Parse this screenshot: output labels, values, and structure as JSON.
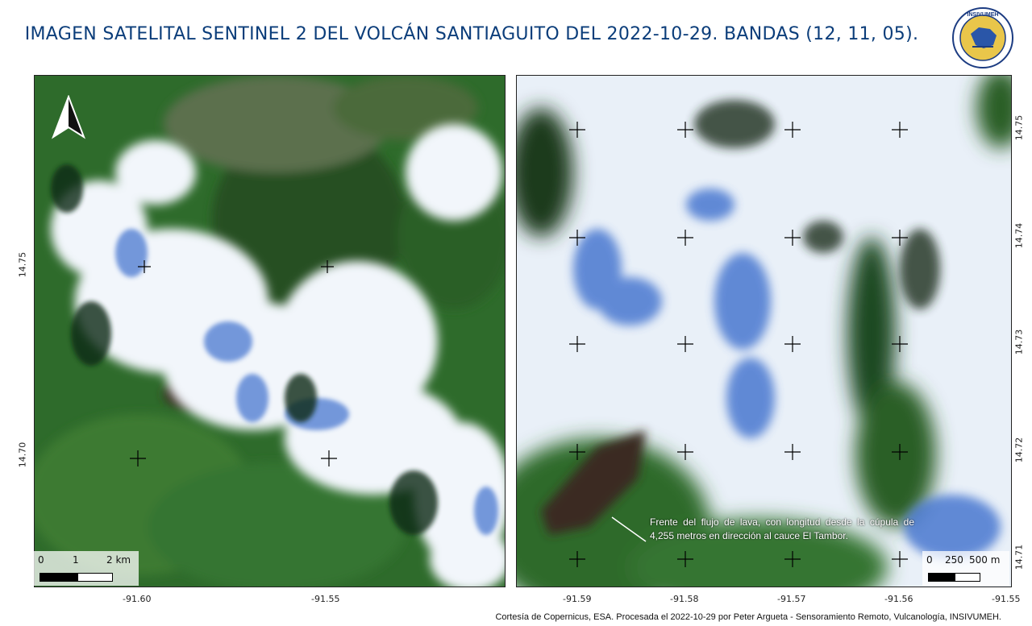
{
  "title": "IMAGEN SATELITAL SENTINEL 2 DEL VOLCÁN SANTIAGUITO DEL 2022-10-29. BANDAS (12, 11, 05).",
  "logo": {
    "text": "INSIVUMEH"
  },
  "left_map": {
    "x_ticks": [
      "-91.60",
      "-91.55"
    ],
    "y_ticks": [
      "14.75",
      "14.70"
    ],
    "scale": {
      "labels": [
        "0",
        "1",
        "2 km"
      ]
    },
    "north_icon": "north-arrow-icon"
  },
  "right_map": {
    "x_ticks": [
      "-91.59",
      "-91.58",
      "-91.57",
      "-91.56",
      "-91.55"
    ],
    "y_ticks": [
      "14.75",
      "14.74",
      "14.73",
      "14.72",
      "14.71"
    ],
    "scale": {
      "labels": [
        "0",
        "250",
        "500 m"
      ]
    },
    "annotation": "Frente del flujo de lava, con longitud desde la cúpula de 4,255 metros en dirección al cauce El Tambor."
  },
  "credit": "Cortesía de Copernicus, ESA. Procesada el 2022-10-29 por Peter Argueta - Sensoramiento Remoto, Vulcanología, INSIVUMEH.",
  "colors": {
    "title": "#0b3d7a",
    "vegetation": "#2f6a2c",
    "cloud": "#f2f6fb",
    "cloud_shadow": "#4a78d0",
    "lava": "#3a2a24"
  }
}
